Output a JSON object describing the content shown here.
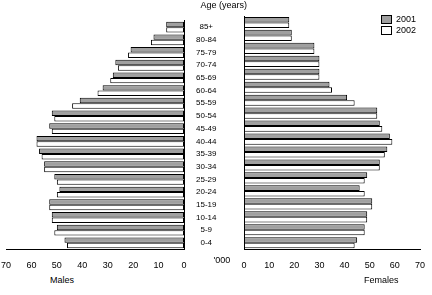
{
  "chart_data": [
    {
      "type": "bar",
      "title": "Males",
      "xlabel": "'000",
      "ylabel": "Age (years)",
      "orientation": "horizontal",
      "grid": false,
      "categories": [
        "85+",
        "80-84",
        "75-79",
        "70-74",
        "65-69",
        "60-64",
        "55-59",
        "50-54",
        "45-49",
        "40-44",
        "35-39",
        "30-34",
        "25-29",
        "20-24",
        "15-19",
        "10-14",
        "5-9",
        "0-4"
      ],
      "series": [
        {
          "name": "2001",
          "color": "#a0a0a0",
          "values": [
            7,
            12,
            21,
            27,
            28,
            32,
            41,
            52,
            53,
            58,
            57,
            55,
            51,
            49,
            53,
            52,
            50,
            47
          ]
        },
        {
          "name": "2002",
          "color": "#ffffff",
          "values": [
            7,
            13,
            22,
            26,
            29,
            34,
            44,
            51,
            52,
            58,
            56,
            55,
            50,
            50,
            53,
            52,
            51,
            46
          ]
        }
      ],
      "xlim": [
        0,
        70
      ],
      "xticks": [
        0,
        10,
        20,
        30,
        40,
        50,
        60,
        70
      ]
    },
    {
      "type": "bar",
      "title": "Females",
      "orientation": "horizontal",
      "grid": false,
      "tick_labels": "x",
      "legend": "upper right",
      "categories": [
        "85+",
        "80-84",
        "75-79",
        "70-74",
        "65-69",
        "60-64",
        "55-59",
        "50-54",
        "45-49",
        "40-44",
        "35-39",
        "30-34",
        "25-29",
        "20-24",
        "15-19",
        "10-14",
        "5-9",
        "0-4"
      ],
      "series": [
        {
          "name": "2001",
          "color": "#a0a0a0",
          "values": [
            18,
            19,
            28,
            30,
            30,
            34,
            41,
            53,
            54,
            58,
            57,
            54,
            49,
            46,
            51,
            49,
            48,
            45
          ]
        },
        {
          "name": "2002",
          "color": "#ffffff",
          "values": [
            18,
            19,
            28,
            30,
            30,
            35,
            44,
            53,
            55,
            59,
            56,
            54,
            48,
            48,
            51,
            49,
            48,
            44
          ]
        }
      ],
      "xlim": [
        0,
        70
      ],
      "xticks": [
        0,
        10,
        20,
        30,
        40,
        50,
        60,
        70
      ]
    }
  ]
}
